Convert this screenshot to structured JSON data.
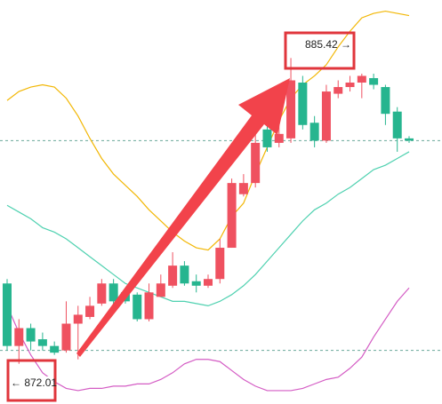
{
  "chart_data": {
    "type": "candlestick",
    "ylim": [
      870.0,
      888.1
    ],
    "up_color": "#ef5160",
    "down_color": "#26b58f",
    "candles": [
      {
        "open": 875.4,
        "high": 875.6,
        "low": 872.4,
        "close": 872.6
      },
      {
        "open": 872.6,
        "high": 873.8,
        "low": 871.8,
        "close": 873.4
      },
      {
        "open": 873.4,
        "high": 873.6,
        "low": 872.4,
        "close": 872.8
      },
      {
        "open": 872.9,
        "high": 873.2,
        "low": 872.4,
        "close": 872.6
      },
      {
        "open": 872.6,
        "high": 872.8,
        "low": 872.2,
        "close": 872.3
      },
      {
        "open": 872.4,
        "high": 874.6,
        "low": 872.3,
        "close": 873.6
      },
      {
        "open": 873.6,
        "high": 874.4,
        "low": 872.0,
        "close": 874.0
      },
      {
        "open": 873.9,
        "high": 874.8,
        "low": 873.8,
        "close": 874.4
      },
      {
        "open": 874.5,
        "high": 875.6,
        "low": 874.4,
        "close": 875.4
      },
      {
        "open": 875.4,
        "high": 875.6,
        "low": 874.4,
        "close": 874.6
      },
      {
        "open": 875.0,
        "high": 875.2,
        "low": 874.5,
        "close": 874.6
      },
      {
        "open": 874.9,
        "high": 875.0,
        "low": 873.7,
        "close": 873.8
      },
      {
        "open": 873.8,
        "high": 875.4,
        "low": 873.7,
        "close": 875.0
      },
      {
        "open": 874.8,
        "high": 875.8,
        "low": 874.8,
        "close": 875.4
      },
      {
        "open": 875.3,
        "high": 876.8,
        "low": 875.2,
        "close": 876.2
      },
      {
        "open": 876.2,
        "high": 876.4,
        "low": 875.3,
        "close": 875.4
      },
      {
        "open": 875.5,
        "high": 875.8,
        "low": 875.0,
        "close": 875.3
      },
      {
        "open": 875.3,
        "high": 875.8,
        "low": 875.2,
        "close": 875.6
      },
      {
        "open": 875.6,
        "high": 877.4,
        "low": 875.4,
        "close": 877.0
      },
      {
        "open": 877.0,
        "high": 880.1,
        "low": 877.0,
        "close": 879.9
      },
      {
        "open": 879.4,
        "high": 880.3,
        "low": 879.3,
        "close": 879.9
      },
      {
        "open": 879.9,
        "high": 882.1,
        "low": 879.7,
        "close": 881.7
      },
      {
        "open": 882.3,
        "high": 882.6,
        "low": 881.3,
        "close": 881.5
      },
      {
        "open": 881.7,
        "high": 882.5,
        "low": 881.5,
        "close": 882.1
      },
      {
        "open": 881.9,
        "high": 885.5,
        "low": 881.7,
        "close": 884.5
      },
      {
        "open": 884.4,
        "high": 884.7,
        "low": 882.3,
        "close": 882.5
      },
      {
        "open": 882.6,
        "high": 882.9,
        "low": 881.5,
        "close": 881.8
      },
      {
        "open": 881.8,
        "high": 884.3,
        "low": 881.7,
        "close": 884.0
      },
      {
        "open": 883.9,
        "high": 884.5,
        "low": 883.7,
        "close": 884.2
      },
      {
        "open": 884.2,
        "high": 884.7,
        "low": 884.0,
        "close": 884.4
      },
      {
        "open": 884.4,
        "high": 884.8,
        "low": 883.7,
        "close": 884.7
      },
      {
        "open": 884.6,
        "high": 884.8,
        "low": 884.1,
        "close": 884.3
      },
      {
        "open": 884.2,
        "high": 884.3,
        "low": 882.5,
        "close": 883.0
      },
      {
        "open": 883.1,
        "high": 883.3,
        "low": 881.3,
        "close": 881.9
      },
      {
        "open": 881.9,
        "high": 882.0,
        "low": 881.7,
        "close": 881.8
      }
    ],
    "series": [
      {
        "color": "#f2b705",
        "values": [
          883.6,
          884.0,
          884.2,
          884.3,
          884.2,
          883.7,
          882.9,
          881.9,
          881.0,
          880.3,
          879.8,
          879.3,
          878.7,
          878.2,
          877.7,
          877.3,
          877.0,
          876.9,
          877.4,
          878.4,
          879.0,
          880.3,
          881.5,
          882.7,
          883.7,
          884.3,
          884.7,
          885.2,
          886.0,
          886.7,
          887.3,
          887.5,
          887.6,
          887.5,
          887.4
        ]
      },
      {
        "color": "#4fd1b0",
        "values": [
          878.9,
          878.6,
          878.3,
          877.9,
          877.7,
          877.4,
          877.0,
          876.6,
          876.2,
          875.8,
          875.4,
          875.2,
          875.0,
          874.8,
          874.6,
          874.6,
          874.5,
          874.4,
          874.6,
          874.9,
          875.3,
          875.8,
          876.4,
          877.0,
          877.6,
          878.2,
          878.7,
          879.0,
          879.4,
          879.7,
          880.1,
          880.5,
          880.7,
          881.0,
          881.3
        ]
      },
      {
        "color": "#d45cc4",
        "values": [
          874.4,
          873.2,
          872.2,
          871.4,
          871.0,
          870.7,
          870.6,
          870.7,
          870.7,
          870.8,
          870.8,
          870.9,
          870.9,
          871.1,
          871.4,
          871.8,
          872.0,
          872.0,
          871.9,
          871.5,
          871.1,
          870.8,
          870.6,
          870.6,
          870.6,
          870.7,
          870.9,
          871.1,
          871.2,
          871.6,
          872.1,
          873.0,
          873.8,
          874.6,
          875.2
        ]
      }
    ],
    "price_lines": [
      881.8,
      872.4
    ],
    "annotations": [
      {
        "text": "885.42 →"
      },
      {
        "text": "← 872.01"
      }
    ]
  }
}
